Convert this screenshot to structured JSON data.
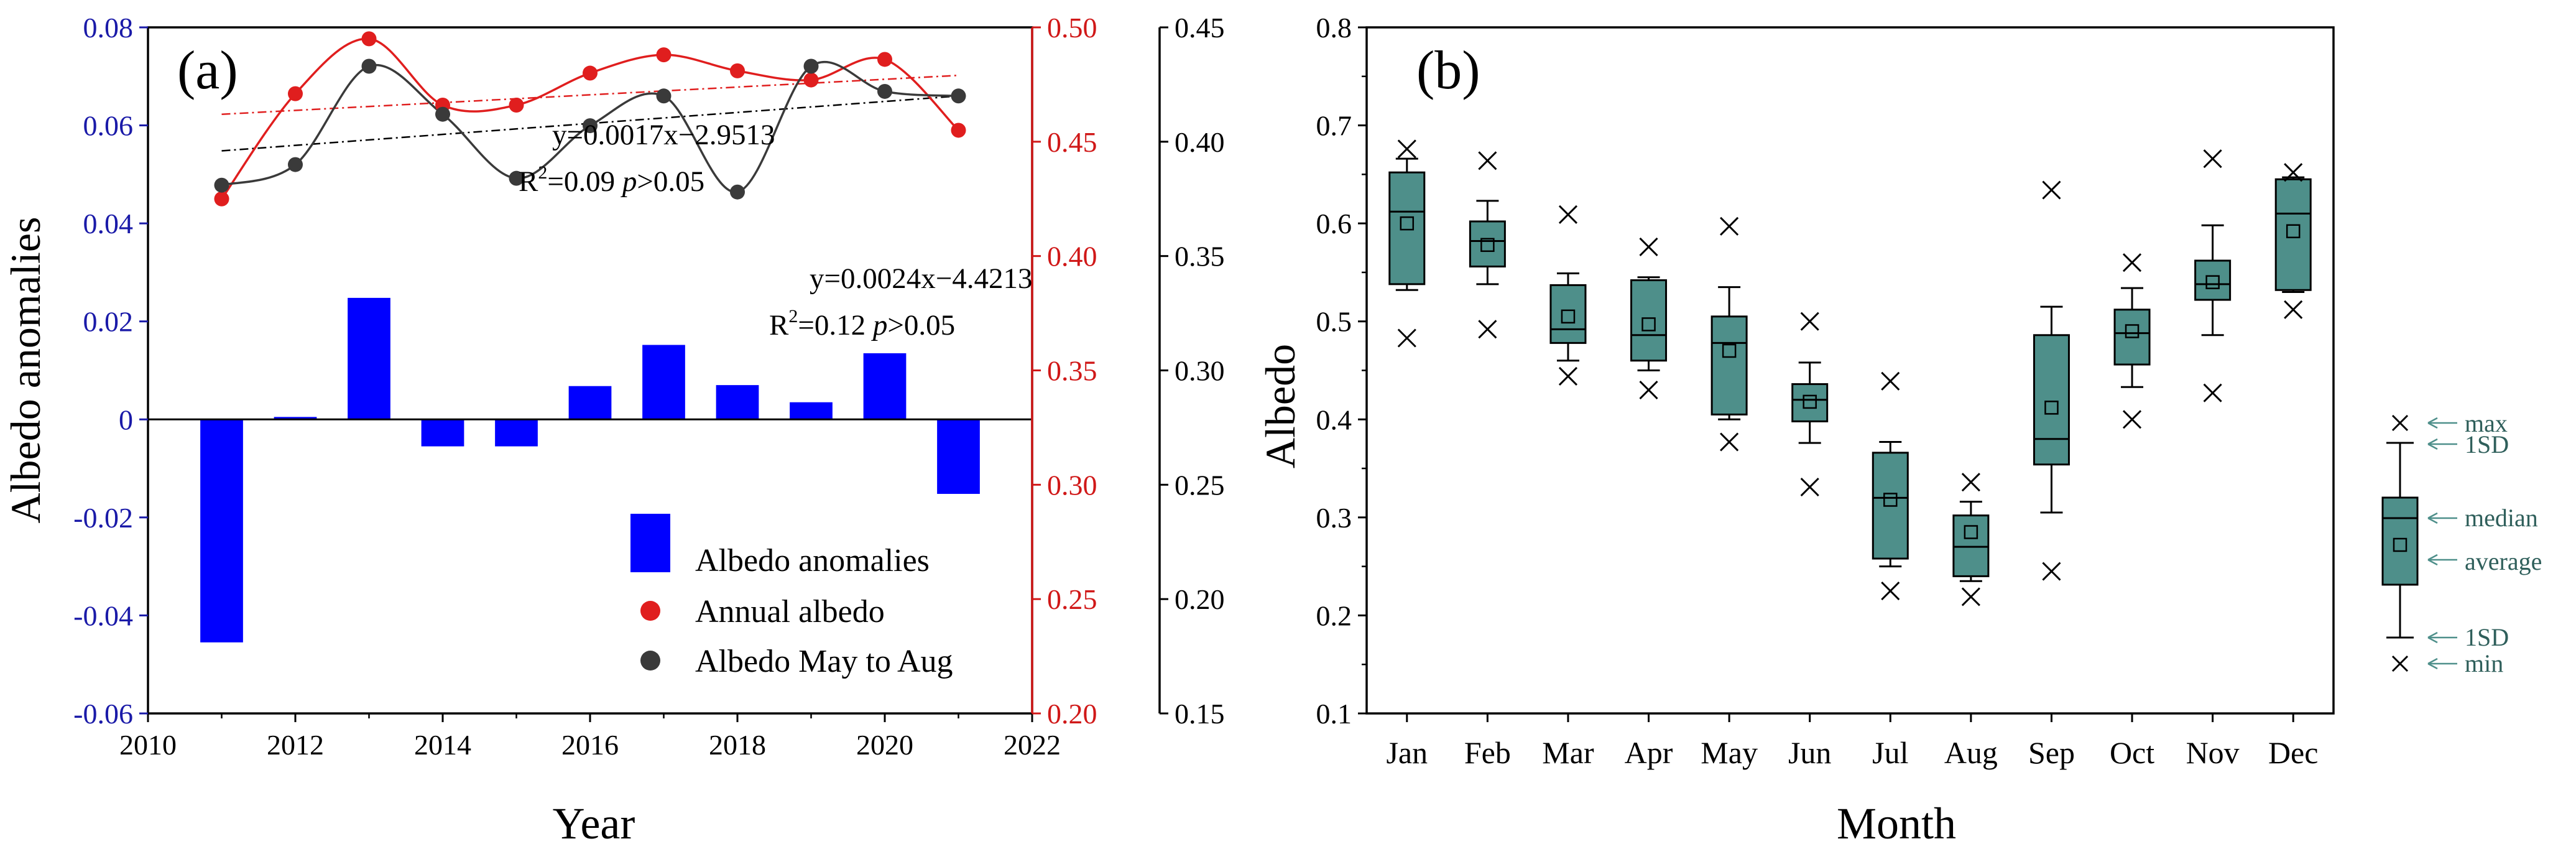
{
  "chart_data": [
    {
      "type": "bar+line",
      "panel_label": "(a)",
      "xlabel": "Year",
      "ylabel_left": "Albedo anomalies",
      "xlim": [
        2010,
        2022
      ],
      "x_ticks": [
        "2010",
        "2012",
        "2014",
        "2016",
        "2018",
        "2020",
        "2022"
      ],
      "ylim_left": [
        -0.06,
        0.08
      ],
      "y_ticks_left": [
        "-0.06",
        "-0.04",
        "-0.02",
        "0",
        "0.02",
        "0.04",
        "0.06",
        "0.08"
      ],
      "ylim_right1": [
        0.2,
        0.5
      ],
      "y_ticks_right1": [
        "0.20",
        "0.25",
        "0.30",
        "0.35",
        "0.40",
        "0.45",
        "0.50"
      ],
      "ylim_right2": [
        0.15,
        0.45
      ],
      "y_ticks_right2": [
        "0.15",
        "0.20",
        "0.25",
        "0.30",
        "0.35",
        "0.40",
        "0.45"
      ],
      "x": [
        2011,
        2012,
        2013,
        2014,
        2015,
        2016,
        2017,
        2018,
        2019,
        2020,
        2021
      ],
      "series": [
        {
          "name": "Albedo anomalies",
          "kind": "bar",
          "axis": "left",
          "color": "#0000ff",
          "values": [
            -0.0455,
            0.0005,
            0.0248,
            -0.0055,
            -0.0055,
            0.0068,
            0.0152,
            0.007,
            0.0035,
            0.0135,
            -0.0152
          ]
        },
        {
          "name": "Annual albedo",
          "kind": "line",
          "axis": "right1",
          "color": "#e01e1e",
          "values": [
            0.425,
            0.471,
            0.495,
            0.466,
            0.466,
            0.48,
            0.488,
            0.481,
            0.477,
            0.486,
            0.455
          ]
        },
        {
          "name": "Albedo May to Aug",
          "kind": "line",
          "axis": "right2",
          "color": "#3a3a3a",
          "values": [
            0.381,
            0.39,
            0.433,
            0.412,
            0.384,
            0.407,
            0.42,
            0.378,
            0.433,
            0.422,
            0.42
          ]
        }
      ],
      "fits": [
        {
          "series": "Annual albedo",
          "equation": "y=0.0017x−2.9513",
          "r2_prefix": "R",
          "r2_sup": "2",
          "r2_rest": "=0.09 ",
          "p_italic": "p",
          "p_rest": ">0.05",
          "line_endpoints": [
            [
              2011,
              0.462
            ],
            [
              2021,
              0.479
            ]
          ],
          "color": "#e01e1e"
        },
        {
          "series": "Albedo May to Aug",
          "equation": "y=0.0024x−4.4213",
          "r2_prefix": "R",
          "r2_sup": "2",
          "r2_rest": "=0.12 ",
          "p_italic": "p",
          "p_rest": ">0.05",
          "line_endpoints": [
            [
              2011,
              0.396
            ],
            [
              2021,
              0.42
            ]
          ],
          "color": "#000000"
        }
      ],
      "legend": {
        "position": "bottom-right",
        "items": [
          "Albedo anomalies",
          "Annual albedo",
          "Albedo May to Aug"
        ]
      },
      "colors": {
        "left_axis": "#1a1aa8",
        "right1_axis": "#d01818",
        "right2_axis": "#000000"
      }
    },
    {
      "type": "box",
      "panel_label": "(b)",
      "xlabel": "Month",
      "ylabel": "Albedo",
      "ylim": [
        0.1,
        0.8
      ],
      "y_ticks": [
        "0.1",
        "0.2",
        "0.3",
        "0.4",
        "0.5",
        "0.6",
        "0.7",
        "0.8"
      ],
      "categories": [
        "Jan",
        "Feb",
        "Mar",
        "Apr",
        "May",
        "Jun",
        "Jul",
        "Aug",
        "Sep",
        "Oct",
        "Nov",
        "Dec"
      ],
      "box_color": "#4e8f8a",
      "boxes": [
        {
          "max": 0.676,
          "sd_hi": 0.666,
          "q3": 0.652,
          "median": 0.612,
          "mean": 0.6,
          "q1": 0.538,
          "sd_lo": 0.532,
          "min": 0.483
        },
        {
          "max": 0.664,
          "sd_hi": 0.623,
          "q3": 0.602,
          "median": 0.582,
          "mean": 0.578,
          "q1": 0.556,
          "sd_lo": 0.538,
          "min": 0.492
        },
        {
          "max": 0.609,
          "sd_hi": 0.549,
          "q3": 0.537,
          "median": 0.492,
          "mean": 0.505,
          "q1": 0.478,
          "sd_lo": 0.46,
          "min": 0.444
        },
        {
          "max": 0.576,
          "sd_hi": 0.545,
          "q3": 0.542,
          "median": 0.486,
          "mean": 0.497,
          "q1": 0.46,
          "sd_lo": 0.45,
          "min": 0.43
        },
        {
          "max": 0.597,
          "sd_hi": 0.535,
          "q3": 0.505,
          "median": 0.478,
          "mean": 0.47,
          "q1": 0.405,
          "sd_lo": 0.4,
          "min": 0.377
        },
        {
          "max": 0.5,
          "sd_hi": 0.458,
          "q3": 0.436,
          "median": 0.42,
          "mean": 0.418,
          "q1": 0.398,
          "sd_lo": 0.376,
          "min": 0.331
        },
        {
          "max": 0.439,
          "sd_hi": 0.377,
          "q3": 0.366,
          "median": 0.32,
          "mean": 0.318,
          "q1": 0.258,
          "sd_lo": 0.25,
          "min": 0.225
        },
        {
          "max": 0.336,
          "sd_hi": 0.316,
          "q3": 0.302,
          "median": 0.27,
          "mean": 0.285,
          "q1": 0.24,
          "sd_lo": 0.235,
          "min": 0.219
        },
        {
          "max": 0.634,
          "sd_hi": 0.515,
          "q3": 0.486,
          "median": 0.38,
          "mean": 0.412,
          "q1": 0.354,
          "sd_lo": 0.305,
          "min": 0.245
        },
        {
          "max": 0.56,
          "sd_hi": 0.534,
          "q3": 0.512,
          "median": 0.488,
          "mean": 0.49,
          "q1": 0.456,
          "sd_lo": 0.433,
          "min": 0.4
        },
        {
          "max": 0.666,
          "sd_hi": 0.598,
          "q3": 0.562,
          "median": 0.538,
          "mean": 0.54,
          "q1": 0.522,
          "sd_lo": 0.486,
          "min": 0.427
        },
        {
          "max": 0.652,
          "sd_hi": 0.647,
          "q3": 0.645,
          "median": 0.61,
          "mean": 0.592,
          "q1": 0.532,
          "sd_lo": 0.53,
          "min": 0.512
        }
      ],
      "key": {
        "labels": [
          "max",
          "1SD",
          "median",
          "average",
          "1SD",
          "min"
        ],
        "label_color": "#4e8f8a"
      }
    }
  ]
}
